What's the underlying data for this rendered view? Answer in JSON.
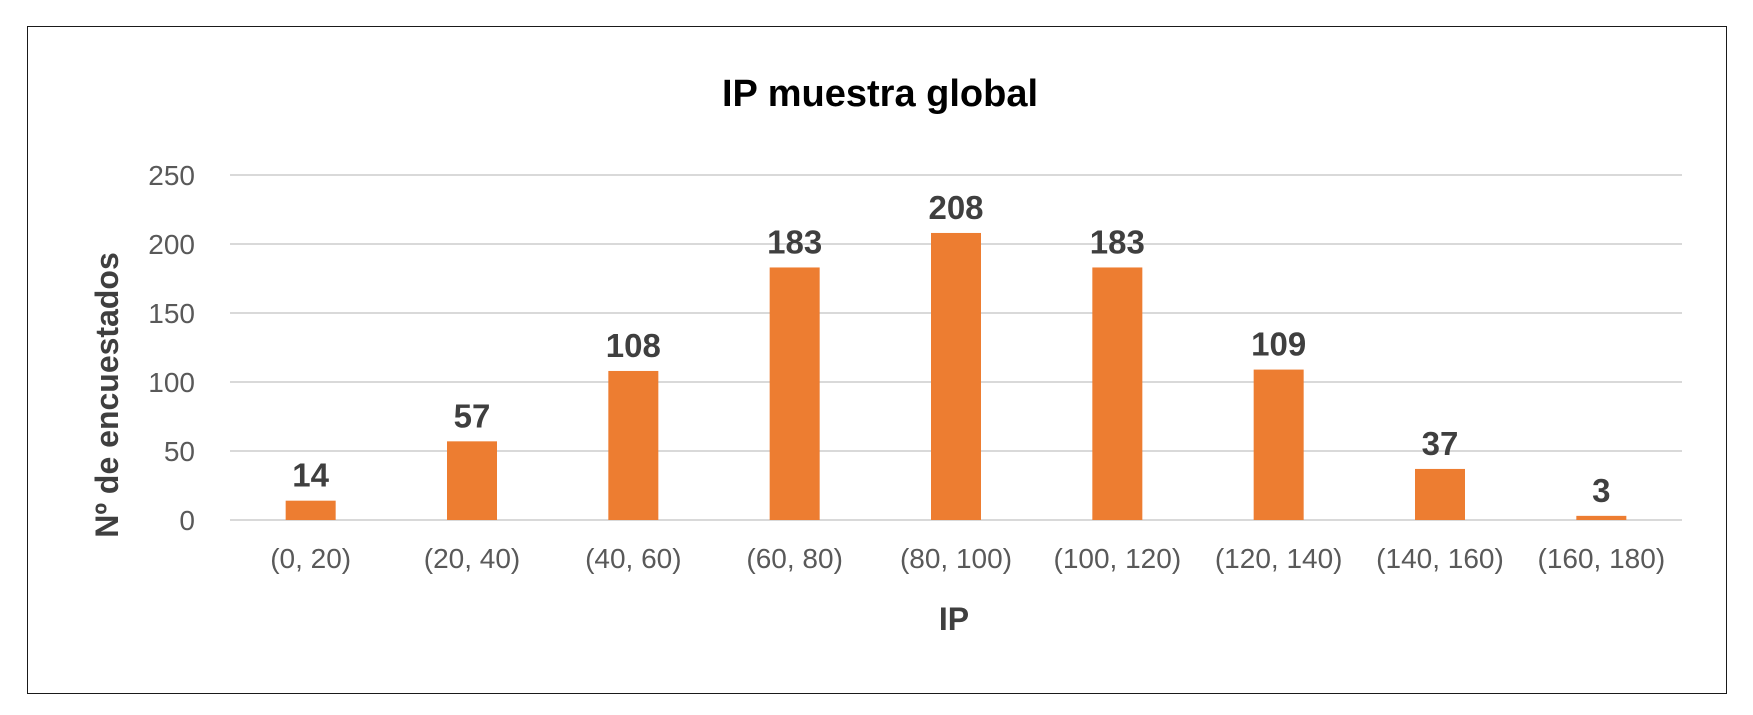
{
  "chart_data": {
    "type": "bar",
    "title": "IP muestra global",
    "xlabel": "IP",
    "ylabel": "Nº de encuestados",
    "categories": [
      "(0, 20)",
      "(20, 40)",
      "(40, 60)",
      "(60, 80)",
      "(80, 100)",
      "(100, 120)",
      "(120, 140)",
      "(140, 160)",
      "(160, 180)"
    ],
    "values": [
      14,
      57,
      108,
      183,
      208,
      183,
      109,
      37,
      3
    ],
    "data_labels": [
      "14",
      "57",
      "108",
      "183",
      "208",
      "183",
      "109",
      "37",
      "3"
    ],
    "ylim": [
      0,
      250
    ],
    "yticks": [
      "0",
      "50",
      "100",
      "150",
      "200",
      "250"
    ],
    "grid": true,
    "legend": "none",
    "colors": {
      "bar": "#ED7D31",
      "gridline": "#D9D9D9",
      "frame": "#1a1a1a"
    }
  }
}
